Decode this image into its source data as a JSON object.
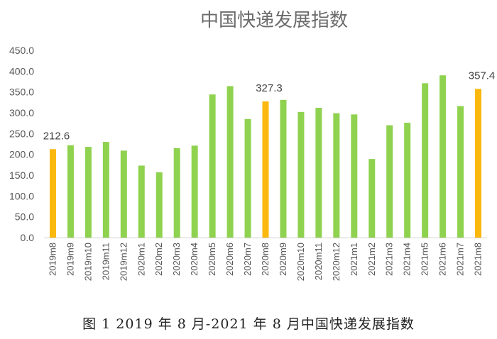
{
  "chart_data": {
    "type": "bar",
    "title": "中国快递发展指数",
    "categories": [
      "2019m8",
      "2019m9",
      "2019m10",
      "2019m11",
      "2019m12",
      "2020m1",
      "2020m2",
      "2020m3",
      "2020m4",
      "2020m5",
      "2020m6",
      "2020m7",
      "2020m8",
      "2020m9",
      "2020m10",
      "2020m11",
      "2020m12",
      "2021m1",
      "2021m2",
      "2021m3",
      "2021m4",
      "2021m5",
      "2021m6",
      "2021m7",
      "2021m8"
    ],
    "values": [
      212.6,
      222,
      218,
      230,
      209,
      173,
      157,
      215,
      221,
      344,
      364,
      285,
      327.3,
      331,
      302,
      312,
      299,
      296,
      189,
      270,
      276,
      371,
      390,
      316,
      357.4
    ],
    "highlight_indices": [
      0,
      12,
      24
    ],
    "data_labels": [
      {
        "index": 0,
        "text": "212.6"
      },
      {
        "index": 12,
        "text": "327.3"
      },
      {
        "index": 24,
        "text": "357.4"
      }
    ],
    "yticks": [
      "0.0",
      "50.0",
      "100.0",
      "150.0",
      "200.0",
      "250.0",
      "300.0",
      "350.0",
      "400.0",
      "450.0"
    ],
    "ylim": [
      0,
      450
    ],
    "grid": false,
    "colors": {
      "bar": "#8fd24f",
      "highlight": "#fbb80f",
      "axis": "#d0d0d0"
    }
  },
  "caption": "图 1 2019 年 8 月-2021 年 8 月中国快递发展指数"
}
